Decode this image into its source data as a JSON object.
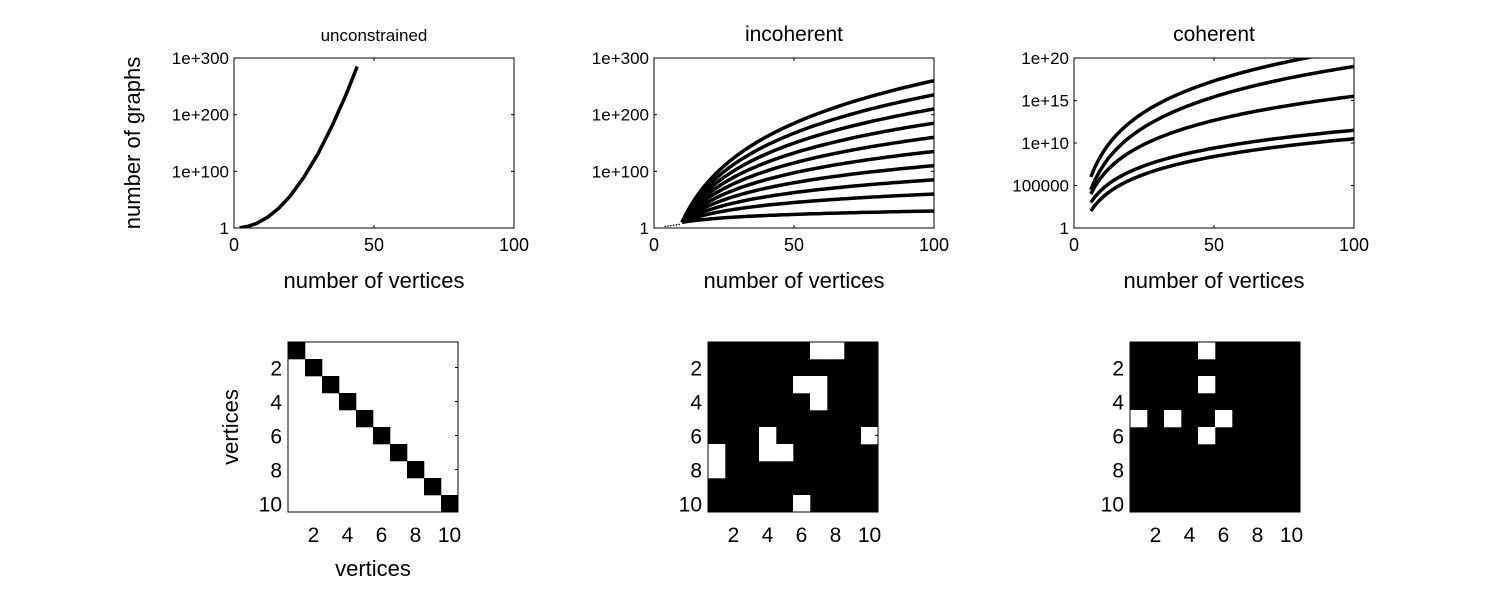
{
  "figure": {
    "background": "#ffffff",
    "ink": "#000000"
  },
  "chart_data": [
    {
      "type": "line",
      "title": "unconstrained",
      "xlabel": "number of vertices",
      "ylabel": "number of graphs",
      "xlim": [
        0,
        100
      ],
      "xticks": [
        0,
        50,
        100
      ],
      "y_scale": "log10",
      "ylim_exponent": [
        0,
        300
      ],
      "yticks": [
        {
          "label": "1",
          "exp": 0
        },
        {
          "label": "1e+100",
          "exp": 100
        },
        {
          "label": "1e+200",
          "exp": 200
        },
        {
          "label": "1e+300",
          "exp": 300
        }
      ],
      "series": [
        {
          "x": [
            2,
            5,
            8,
            12,
            16,
            20,
            25,
            30,
            35,
            40,
            44
          ],
          "log10_y": [
            0.3,
            3,
            8,
            19,
            35,
            56,
            90,
            131,
            180,
            235,
            285
          ]
        }
      ]
    },
    {
      "type": "line",
      "title": "incoherent",
      "xlabel": "number of vertices",
      "xlim": [
        0,
        100
      ],
      "xticks": [
        0,
        50,
        100
      ],
      "y_scale": "log10",
      "ylim_exponent": [
        0,
        300
      ],
      "yticks": [
        {
          "label": "1",
          "exp": 0
        },
        {
          "label": "1e+100",
          "exp": 100
        },
        {
          "label": "1e+200",
          "exp": 200
        },
        {
          "label": "1e+300",
          "exp": 300
        }
      ],
      "curves": {
        "start_x": 10,
        "end_x": 100,
        "start_log10_y": 10,
        "end_log10_y": [
          30,
          60,
          85,
          110,
          135,
          160,
          185,
          210,
          235,
          260
        ]
      },
      "sparse_dots_from_x": 0
    },
    {
      "type": "line",
      "title": "coherent",
      "xlabel": "number of vertices",
      "xlim": [
        0,
        100
      ],
      "xticks": [
        0,
        50,
        100
      ],
      "y_scale": "log10",
      "ylim_exponent": [
        0,
        20
      ],
      "yticks": [
        {
          "label": "1",
          "exp": 0
        },
        {
          "label": "100000",
          "exp": 5
        },
        {
          "label": "1e+10",
          "exp": 10
        },
        {
          "label": "1e+15",
          "exp": 15
        },
        {
          "label": "1e+20",
          "exp": 20
        }
      ],
      "curves": {
        "start_x": 6,
        "end_x": 100,
        "start_log10_y": [
          2,
          3,
          4,
          4.5,
          6
        ],
        "end_log10_y": [
          10.5,
          11.5,
          15.5,
          19,
          21
        ]
      }
    },
    {
      "type": "heatmap",
      "xlabel": "vertices",
      "ylabel": "vertices",
      "size": 10,
      "ticks": [
        2,
        4,
        6,
        8,
        10
      ],
      "background_value": 0,
      "colors": {
        "0": "#ffffff",
        "1": "#000000"
      },
      "cells": [
        [
          1,
          1
        ],
        [
          2,
          2
        ],
        [
          3,
          3
        ],
        [
          4,
          4
        ],
        [
          5,
          5
        ],
        [
          6,
          6
        ],
        [
          7,
          7
        ],
        [
          8,
          8
        ],
        [
          9,
          9
        ],
        [
          10,
          10
        ]
      ]
    },
    {
      "type": "heatmap",
      "size": 10,
      "ticks": [
        2,
        4,
        6,
        8,
        10
      ],
      "background_value": 1,
      "colors": {
        "0": "#ffffff",
        "1": "#000000"
      },
      "cells": [
        [
          1,
          7
        ],
        [
          1,
          8
        ],
        [
          3,
          6
        ],
        [
          3,
          7
        ],
        [
          4,
          7
        ],
        [
          6,
          4
        ],
        [
          6,
          10
        ],
        [
          7,
          1
        ],
        [
          7,
          4
        ],
        [
          7,
          5
        ],
        [
          8,
          1
        ],
        [
          10,
          6
        ]
      ]
    },
    {
      "type": "heatmap",
      "size": 10,
      "ticks": [
        2,
        4,
        6,
        8,
        10
      ],
      "background_value": 1,
      "colors": {
        "0": "#ffffff",
        "1": "#000000"
      },
      "cells": [
        [
          1,
          5
        ],
        [
          3,
          5
        ],
        [
          5,
          1
        ],
        [
          5,
          3
        ],
        [
          5,
          6
        ],
        [
          6,
          5
        ]
      ]
    }
  ]
}
